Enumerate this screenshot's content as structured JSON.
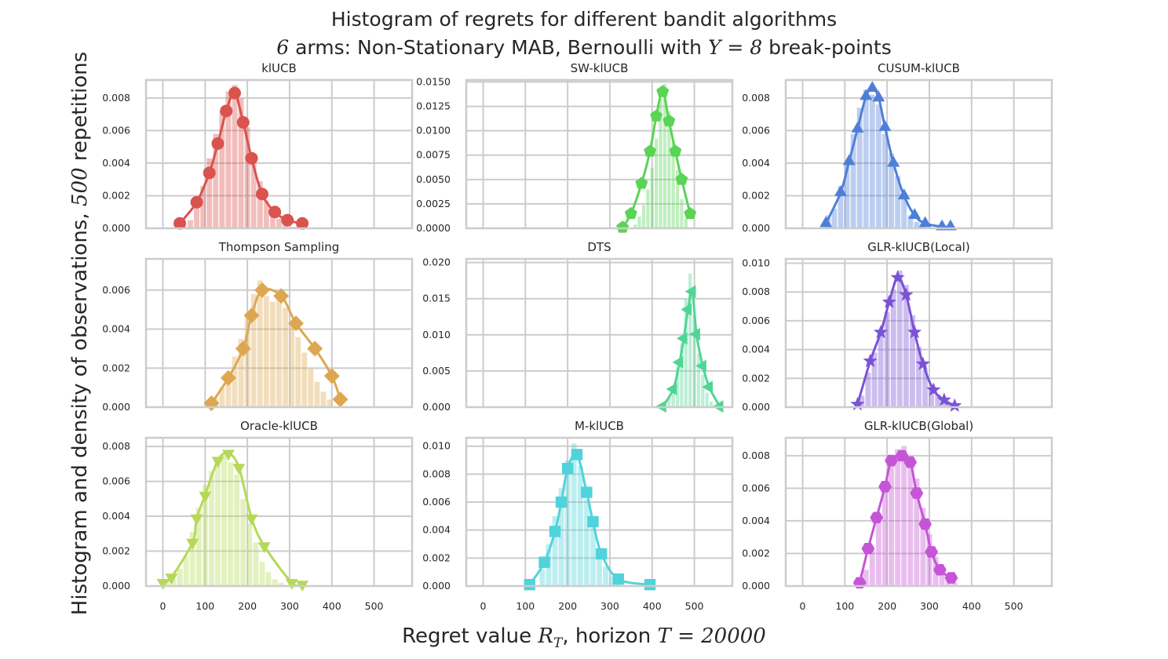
{
  "figure": {
    "title_line1": "Histogram of regrets for different bandit algorithms",
    "title_line2_prefix": "6",
    "title_line2_text": " arms: Non-Stationary MAB, Bernoulli with ",
    "title_line2_symbol": "Υ",
    "title_line2_eq": " = 8",
    "title_line2_suffix": " break-points",
    "ylabel_text": "Histogram and density of observations, ",
    "ylabel_math": "500",
    "ylabel_suffix": " repetitions",
    "xlabel_text": "Regret value ",
    "xlabel_math1": "R",
    "xlabel_math1_sub": "T",
    "xlabel_mid": ", horizon ",
    "xlabel_math2": "T = 20000"
  },
  "chart_data": [
    {
      "type": "bar",
      "title": "klUCB",
      "color": "#d9534f",
      "marker": "circle",
      "xlim": [
        -40,
        590
      ],
      "xticks": [
        0,
        100,
        200,
        300,
        400,
        500
      ],
      "ylim": [
        0,
        0.0091
      ],
      "yticks": [
        "0.000",
        "0.002",
        "0.004",
        "0.006",
        "0.008"
      ],
      "kde": {
        "x": [
          40,
          80,
          110,
          130,
          150,
          170,
          190,
          210,
          235,
          265,
          295,
          330
        ],
        "y": [
          0.0003,
          0.0016,
          0.0034,
          0.0052,
          0.0072,
          0.0083,
          0.0065,
          0.0043,
          0.0021,
          0.001,
          0.0005,
          0.0003
        ]
      },
      "hist": {
        "bins": [
          [
            50,
            0.0001
          ],
          [
            65,
            0.0005
          ],
          [
            80,
            0.0013
          ],
          [
            95,
            0.0026
          ],
          [
            110,
            0.0043
          ],
          [
            125,
            0.0058
          ],
          [
            140,
            0.0072
          ],
          [
            155,
            0.0084
          ],
          [
            170,
            0.0088
          ],
          [
            185,
            0.008
          ],
          [
            200,
            0.0062
          ],
          [
            215,
            0.0044
          ],
          [
            230,
            0.0029
          ],
          [
            245,
            0.0017
          ],
          [
            260,
            0.001
          ],
          [
            275,
            0.0006
          ],
          [
            290,
            0.0003
          ],
          [
            305,
            0.0001
          ],
          [
            320,
            0.0001
          ]
        ],
        "width": 15
      }
    },
    {
      "type": "bar",
      "title": "SW-klUCB",
      "color": "#59d455",
      "marker": "pentagon",
      "xlim": [
        -40,
        590
      ],
      "xticks": [
        0,
        100,
        200,
        300,
        400,
        500
      ],
      "ylim": [
        0,
        0.0152
      ],
      "yticks": [
        "0.0000",
        "0.0025",
        "0.0050",
        "0.0075",
        "0.0100",
        "0.0125",
        "0.0150"
      ],
      "kde": {
        "x": [
          330,
          350,
          375,
          395,
          410,
          425,
          440,
          455,
          470,
          490
        ],
        "y": [
          0.0001,
          0.0015,
          0.0046,
          0.0079,
          0.0115,
          0.014,
          0.011,
          0.0079,
          0.005,
          0.0015
        ]
      },
      "hist": {
        "bins": [
          [
            360,
            0.0004
          ],
          [
            370,
            0.0012
          ],
          [
            380,
            0.0024
          ],
          [
            390,
            0.004
          ],
          [
            400,
            0.0062
          ],
          [
            410,
            0.0092
          ],
          [
            420,
            0.0133
          ],
          [
            430,
            0.0148
          ],
          [
            440,
            0.012
          ],
          [
            450,
            0.009
          ],
          [
            460,
            0.006
          ],
          [
            470,
            0.003
          ],
          [
            480,
            0.001
          ]
        ],
        "width": 10
      }
    },
    {
      "type": "bar",
      "title": "CUSUM-klUCB",
      "color": "#4e7fd8",
      "marker": "triangle-up",
      "xlim": [
        -40,
        590
      ],
      "xticks": [
        0,
        100,
        200,
        300,
        400,
        500
      ],
      "ylim": [
        0,
        0.0091
      ],
      "yticks": [
        "0.000",
        "0.002",
        "0.004",
        "0.006",
        "0.008"
      ],
      "kde": {
        "x": [
          55,
          90,
          110,
          130,
          150,
          165,
          180,
          195,
          215,
          240,
          265,
          290,
          330,
          350
        ],
        "y": [
          0.0003,
          0.0022,
          0.0041,
          0.0061,
          0.0081,
          0.0086,
          0.008,
          0.0062,
          0.004,
          0.002,
          0.0008,
          0.0003,
          0.0001,
          0.0001
        ]
      },
      "hist": {
        "bins": [
          [
            60,
            0.0008
          ],
          [
            75,
            0.0012
          ],
          [
            90,
            0.0026
          ],
          [
            105,
            0.004
          ],
          [
            120,
            0.0058
          ],
          [
            135,
            0.0074
          ],
          [
            150,
            0.0085
          ],
          [
            165,
            0.0082
          ],
          [
            180,
            0.0076
          ],
          [
            195,
            0.0058
          ],
          [
            210,
            0.0046
          ],
          [
            225,
            0.0032
          ],
          [
            240,
            0.0018
          ],
          [
            255,
            0.0008
          ],
          [
            270,
            0.0004
          ],
          [
            285,
            0.0002
          ]
        ],
        "width": 15
      }
    },
    {
      "type": "bar",
      "title": "Thompson Sampling",
      "color": "#dda752",
      "marker": "diamond",
      "xlim": [
        -40,
        590
      ],
      "xticks": [
        0,
        100,
        200,
        300,
        400,
        500
      ],
      "ylim": [
        0,
        0.0076
      ],
      "yticks": [
        "0.000",
        "0.002",
        "0.004",
        "0.006"
      ],
      "kde": {
        "x": [
          115,
          155,
          190,
          210,
          235,
          280,
          315,
          360,
          400,
          420
        ],
        "y": [
          0.0002,
          0.0015,
          0.003,
          0.0047,
          0.006,
          0.0057,
          0.0043,
          0.003,
          0.0016,
          0.0004
        ]
      },
      "hist": {
        "bins": [
          [
            125,
            0.0005
          ],
          [
            140,
            0.001
          ],
          [
            155,
            0.0018
          ],
          [
            170,
            0.0026
          ],
          [
            185,
            0.0035
          ],
          [
            200,
            0.0046
          ],
          [
            215,
            0.0058
          ],
          [
            230,
            0.0065
          ],
          [
            245,
            0.0057
          ],
          [
            260,
            0.0054
          ],
          [
            275,
            0.0056
          ],
          [
            290,
            0.0051
          ],
          [
            305,
            0.0044
          ],
          [
            320,
            0.0036
          ],
          [
            335,
            0.0028
          ],
          [
            350,
            0.002
          ],
          [
            365,
            0.0013
          ],
          [
            380,
            0.0008
          ],
          [
            395,
            0.0004
          ]
        ],
        "width": 15
      }
    },
    {
      "type": "bar",
      "title": "DTS",
      "color": "#4fd694",
      "marker": "triangle-left",
      "xlim": [
        -40,
        590
      ],
      "xticks": [
        0,
        100,
        200,
        300,
        400,
        500
      ],
      "ylim": [
        0,
        0.0205
      ],
      "yticks": [
        "0.000",
        "0.005",
        "0.010",
        "0.015",
        "0.020"
      ],
      "kde": {
        "x": [
          425,
          450,
          465,
          475,
          485,
          495,
          505,
          520,
          535,
          560
        ],
        "y": [
          0.0001,
          0.0025,
          0.0062,
          0.0095,
          0.0135,
          0.016,
          0.0101,
          0.0057,
          0.0028,
          0.0001
        ]
      },
      "hist": {
        "bins": [
          [
            440,
            0.0015
          ],
          [
            450,
            0.003
          ],
          [
            460,
            0.0055
          ],
          [
            470,
            0.0088
          ],
          [
            480,
            0.015
          ],
          [
            490,
            0.0185
          ],
          [
            500,
            0.0128
          ],
          [
            510,
            0.0075
          ],
          [
            520,
            0.0045
          ],
          [
            530,
            0.002
          ],
          [
            540,
            0.0008
          ]
        ],
        "width": 10
      }
    },
    {
      "type": "bar",
      "title": "GLR-klUCB(Local)",
      "color": "#7a52d6",
      "marker": "star",
      "xlim": [
        -40,
        590
      ],
      "xticks": [
        0,
        100,
        200,
        300,
        400,
        500
      ],
      "ylim": [
        0,
        0.0103
      ],
      "yticks": [
        "0.000",
        "0.002",
        "0.004",
        "0.006",
        "0.008",
        "0.010"
      ],
      "kde": {
        "x": [
          130,
          160,
          185,
          205,
          225,
          245,
          265,
          285,
          310,
          335,
          360
        ],
        "y": [
          0.0002,
          0.0032,
          0.0052,
          0.0073,
          0.009,
          0.0078,
          0.0052,
          0.003,
          0.0012,
          0.0005,
          0.0001
        ]
      },
      "hist": {
        "bins": [
          [
            140,
            0.0008
          ],
          [
            155,
            0.0024
          ],
          [
            170,
            0.0038
          ],
          [
            185,
            0.0052
          ],
          [
            200,
            0.0066
          ],
          [
            215,
            0.0082
          ],
          [
            230,
            0.0095
          ],
          [
            245,
            0.0085
          ],
          [
            260,
            0.0064
          ],
          [
            275,
            0.0042
          ],
          [
            290,
            0.0026
          ],
          [
            305,
            0.0014
          ],
          [
            320,
            0.0009
          ],
          [
            335,
            0.0006
          ],
          [
            350,
            0.0003
          ]
        ],
        "width": 15
      }
    },
    {
      "type": "bar",
      "title": "Oracle-klUCB",
      "color": "#b5d957",
      "marker": "triangle-down",
      "xlim": [
        -40,
        590
      ],
      "xticks": [
        0,
        100,
        200,
        300,
        400,
        500
      ],
      "ylim": [
        0,
        0.0085
      ],
      "yticks": [
        "0.000",
        "0.002",
        "0.004",
        "0.006",
        "0.008"
      ],
      "kde": {
        "x": [
          0,
          20,
          70,
          80,
          100,
          130,
          155,
          180,
          210,
          240,
          305,
          330
        ],
        "y": [
          0.0002,
          0.0005,
          0.0025,
          0.0039,
          0.0052,
          0.0072,
          0.0076,
          0.0068,
          0.0039,
          0.0023,
          0.0002,
          0.0001
        ]
      },
      "hist": {
        "bins": [
          [
            10,
            0.0002
          ],
          [
            25,
            0.0004
          ],
          [
            40,
            0.001
          ],
          [
            55,
            0.0017
          ],
          [
            70,
            0.0031
          ],
          [
            85,
            0.0045
          ],
          [
            100,
            0.0058
          ],
          [
            115,
            0.0066
          ],
          [
            130,
            0.0071
          ],
          [
            145,
            0.0075
          ],
          [
            160,
            0.0071
          ],
          [
            175,
            0.0064
          ],
          [
            190,
            0.005
          ],
          [
            205,
            0.0036
          ],
          [
            220,
            0.0025
          ],
          [
            235,
            0.0014
          ],
          [
            250,
            0.0008
          ],
          [
            265,
            0.0004
          ],
          [
            280,
            0.0002
          ]
        ],
        "width": 15
      }
    },
    {
      "type": "bar",
      "title": "M-klUCB",
      "color": "#50d3da",
      "marker": "square",
      "xlim": [
        -40,
        590
      ],
      "xticks": [
        0,
        100,
        200,
        300,
        400,
        500
      ],
      "ylim": [
        0,
        0.0106
      ],
      "yticks": [
        "0.000",
        "0.002",
        "0.004",
        "0.006",
        "0.008",
        "0.010"
      ],
      "kde": {
        "x": [
          110,
          145,
          170,
          185,
          200,
          222,
          245,
          260,
          280,
          320,
          395
        ],
        "y": [
          0.0001,
          0.0017,
          0.0039,
          0.006,
          0.0084,
          0.0094,
          0.0067,
          0.0046,
          0.0023,
          0.0005,
          0.0001
        ]
      },
      "hist": {
        "bins": [
          [
            140,
            0.0012
          ],
          [
            155,
            0.003
          ],
          [
            170,
            0.005
          ],
          [
            185,
            0.007
          ],
          [
            200,
            0.009
          ],
          [
            215,
            0.0102
          ],
          [
            230,
            0.0086
          ],
          [
            245,
            0.0062
          ],
          [
            260,
            0.0042
          ],
          [
            275,
            0.0026
          ],
          [
            290,
            0.0014
          ],
          [
            305,
            0.0007
          ],
          [
            320,
            0.0003
          ]
        ],
        "width": 15
      }
    },
    {
      "type": "bar",
      "title": "GLR-klUCB(Global)",
      "color": "#c555d6",
      "marker": "hexagon",
      "xlim": [
        -40,
        590
      ],
      "xticks": [
        0,
        100,
        200,
        300,
        400,
        500
      ],
      "ylim": [
        0,
        0.0091
      ],
      "yticks": [
        "0.000",
        "0.002",
        "0.004",
        "0.006",
        "0.008"
      ],
      "kde": {
        "x": [
          135,
          155,
          175,
          195,
          210,
          235,
          255,
          270,
          290,
          305,
          325,
          352
        ],
        "y": [
          0.0002,
          0.0023,
          0.0042,
          0.0061,
          0.0077,
          0.008,
          0.0076,
          0.0057,
          0.0038,
          0.0021,
          0.001,
          0.0005
        ]
      },
      "hist": {
        "bins": [
          [
            150,
            0.001
          ],
          [
            165,
            0.0022
          ],
          [
            180,
            0.004
          ],
          [
            195,
            0.0058
          ],
          [
            210,
            0.0074
          ],
          [
            225,
            0.0084
          ],
          [
            240,
            0.0086
          ],
          [
            255,
            0.008
          ],
          [
            270,
            0.0066
          ],
          [
            285,
            0.0048
          ],
          [
            300,
            0.0032
          ],
          [
            315,
            0.0018
          ],
          [
            330,
            0.0009
          ],
          [
            345,
            0.0004
          ],
          [
            360,
            0.0002
          ]
        ],
        "width": 15
      }
    }
  ]
}
